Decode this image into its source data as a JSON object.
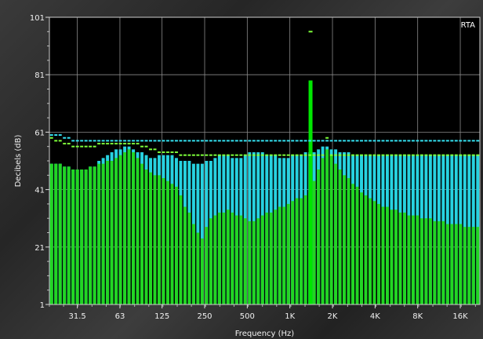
{
  "chart_data": {
    "type": "bar",
    "mode_label": "RTA",
    "xlabel": "Frequency (Hz)",
    "ylabel": "Decibels (dB)",
    "ylim": [
      1,
      101
    ],
    "xlim_hz": [
      20,
      22000
    ],
    "x_scale": "log",
    "grid": true,
    "y_ticks": [
      "1",
      "21",
      "41",
      "61",
      "81",
      "101"
    ],
    "x_ticks": [
      {
        "hz": 31.5,
        "label": "31.5"
      },
      {
        "hz": 63,
        "label": "63"
      },
      {
        "hz": 125,
        "label": "125"
      },
      {
        "hz": 250,
        "label": "250"
      },
      {
        "hz": 500,
        "label": "500"
      },
      {
        "hz": 1000,
        "label": "1K"
      },
      {
        "hz": 2000,
        "label": "2K"
      },
      {
        "hz": 4000,
        "label": "4K"
      },
      {
        "hz": 8000,
        "label": "8K"
      },
      {
        "hz": 16000,
        "label": "16K"
      }
    ],
    "colors": {
      "background": "#000000",
      "grid": "#8a8a8a",
      "current": "#22d622",
      "max_hold": "#27d2e0",
      "peak_current": "#7dff3a",
      "peak_max": "#34e0f0",
      "spike": "#00e600"
    },
    "bands": {
      "count": 100,
      "current_db": [
        50,
        50,
        50,
        49,
        49,
        48,
        48,
        48,
        48,
        49,
        49,
        50,
        50,
        51,
        51,
        52,
        53,
        54,
        55,
        54,
        52,
        50,
        48,
        47,
        46,
        46,
        45,
        44,
        43,
        42,
        39,
        35,
        33,
        29,
        26,
        24,
        28,
        31,
        32,
        33,
        33,
        34,
        33,
        32,
        32,
        31,
        30,
        30,
        31,
        32,
        33,
        33,
        34,
        35,
        35,
        36,
        37,
        38,
        38,
        39,
        40,
        44,
        48,
        52,
        55,
        53,
        50,
        48,
        46,
        45,
        43,
        42,
        40,
        39,
        38,
        37,
        36,
        35,
        35,
        34,
        34,
        33,
        33,
        32,
        32,
        32,
        31,
        31,
        31,
        30,
        30,
        30,
        29,
        29,
        29,
        29,
        28,
        28,
        28,
        28
      ],
      "max_db": [
        50,
        50,
        50,
        49,
        49,
        48,
        48,
        48,
        48,
        49,
        49,
        51,
        52,
        53,
        54,
        55,
        55,
        56,
        56,
        55,
        54,
        54,
        53,
        52,
        52,
        53,
        53,
        53,
        53,
        52,
        51,
        51,
        51,
        50,
        50,
        50,
        51,
        51,
        52,
        53,
        53,
        53,
        52,
        52,
        52,
        53,
        54,
        54,
        54,
        54,
        53,
        53,
        53,
        52,
        52,
        52,
        53,
        53,
        53,
        54,
        54,
        54,
        55,
        56,
        56,
        55,
        55,
        54,
        54,
        54,
        53,
        53,
        53,
        53,
        53,
        53,
        53,
        53,
        53,
        53,
        53,
        53,
        53,
        53,
        53,
        53,
        53,
        53,
        53,
        53,
        53,
        53,
        53,
        53,
        53,
        53,
        53,
        53,
        53,
        53
      ],
      "peak_current_db": [
        59,
        58,
        58,
        57,
        57,
        56,
        56,
        56,
        56,
        56,
        56,
        57,
        57,
        57,
        57,
        57,
        57,
        57,
        57,
        57,
        57,
        56,
        56,
        55,
        55,
        54,
        54,
        54,
        54,
        54,
        53,
        53,
        53,
        53,
        53,
        53,
        53,
        53,
        53,
        53,
        53,
        53,
        53,
        53,
        53,
        53,
        53,
        53,
        53,
        53,
        53,
        53,
        53,
        53,
        53,
        53,
        53,
        53,
        53,
        53,
        53,
        53,
        53,
        53,
        59,
        53,
        53,
        53,
        53,
        53,
        53,
        53,
        53,
        53,
        53,
        53,
        53,
        53,
        53,
        53,
        53,
        53,
        53,
        53,
        53,
        53,
        53,
        53,
        53,
        53,
        53,
        53,
        53,
        53,
        53,
        53,
        53,
        53,
        53,
        53
      ],
      "peak_max_db": [
        60,
        60,
        60,
        59,
        59,
        58,
        58,
        58,
        58,
        58,
        58,
        58,
        58,
        58,
        58,
        58,
        58,
        58,
        58,
        58,
        58,
        58,
        58,
        58,
        58,
        58,
        58,
        58,
        58,
        58,
        58,
        58,
        58,
        58,
        58,
        58,
        58,
        58,
        58,
        58,
        58,
        58,
        58,
        58,
        58,
        58,
        58,
        58,
        58,
        58,
        58,
        58,
        58,
        58,
        58,
        58,
        58,
        58,
        58,
        58,
        58,
        58,
        58,
        58,
        58,
        58,
        58,
        58,
        58,
        58,
        58,
        58,
        58,
        58,
        58,
        58,
        58,
        58,
        58,
        58,
        58,
        58,
        58,
        58,
        58,
        58,
        58,
        58,
        58,
        58,
        58,
        58,
        58,
        58,
        58,
        58,
        58,
        58,
        58,
        58
      ]
    },
    "spike": {
      "hz": 1400,
      "db": 79,
      "peak_db": 96
    }
  }
}
